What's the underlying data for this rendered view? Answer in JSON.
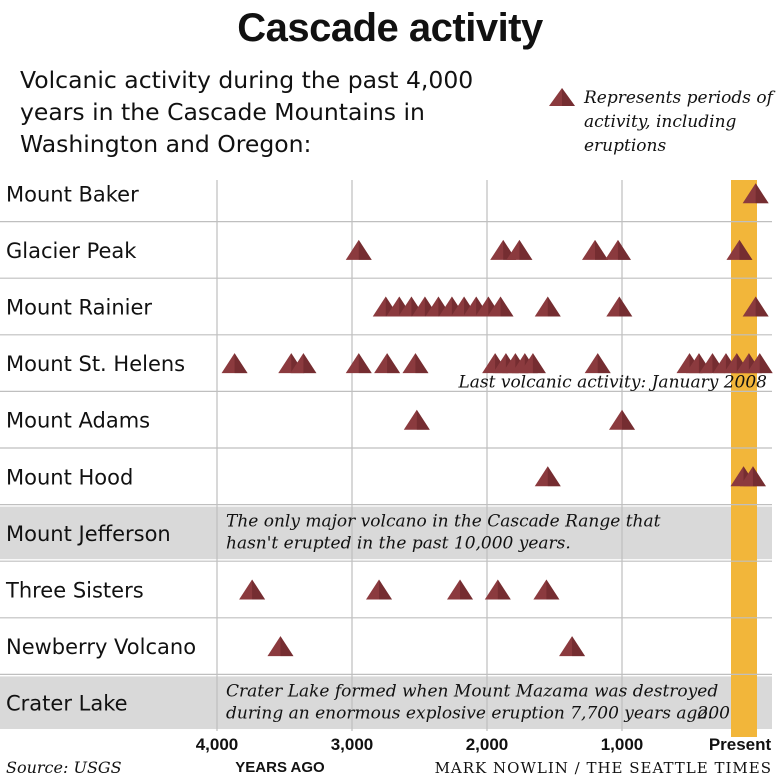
{
  "title": "Cascade activity",
  "subtitle": "Volcanic activity during the past 4,000 years in the Cascade Mountains in Washington and Oregon:",
  "legend": {
    "text": "Represents periods of activity, including eruptions"
  },
  "source": "Source: USGS",
  "credit": "MARK NOWLIN / THE SEATTLE TIMES",
  "colors": {
    "marker": "#8b3a3e",
    "marker_dark": "#5a1f22",
    "present_band": "#f2b63a",
    "shaded_row": "#d9d9d9",
    "grid": "#bfbfbf"
  },
  "chart_data": {
    "type": "scatter",
    "xlabel": "YEARS AGO",
    "x_ticks": [
      {
        "value": 4000,
        "label": "4,000"
      },
      {
        "value": 3000,
        "label": "3,000"
      },
      {
        "value": 2000,
        "label": "2,000"
      },
      {
        "value": 1000,
        "label": "1,000"
      },
      {
        "value": 0,
        "label": "Present"
      }
    ],
    "xlim": [
      4000,
      0
    ],
    "present_band_label": "200",
    "rows": [
      {
        "name": "Mount Baker",
        "events": [
          10
        ]
      },
      {
        "name": "Glacier Peak",
        "events": [
          2950,
          1880,
          1760,
          1200,
          1030,
          130
        ]
      },
      {
        "name": "Mount Rainier",
        "events": [
          2750,
          2650,
          2560,
          2460,
          2360,
          2260,
          2170,
          2080,
          1990,
          1900,
          1550,
          1020,
          10
        ]
      },
      {
        "name": "Mount St. Helens",
        "events": [
          3870,
          3450,
          3360,
          2950,
          2740,
          2530,
          1940,
          1860,
          1790,
          1720,
          1660,
          1180,
          500,
          430,
          330,
          230,
          150,
          60,
          -20
        ],
        "note": "Last volcanic activity: January 2008"
      },
      {
        "name": "Mount Adams",
        "events": [
          2520,
          1000
        ]
      },
      {
        "name": "Mount Hood",
        "events": [
          1550,
          100,
          30
        ]
      },
      {
        "name": "Mount Jefferson",
        "events": [],
        "shaded": true,
        "note": "The only major volcano in the Cascade Range that hasn't erupted in the past 10,000 years."
      },
      {
        "name": "Three Sisters",
        "events": [
          3740,
          2800,
          2200,
          1920,
          1560
        ]
      },
      {
        "name": "Newberry Volcano",
        "events": [
          3530,
          1370
        ]
      },
      {
        "name": "Crater Lake",
        "events": [],
        "shaded": true,
        "note": "Crater Lake formed when Mount Mazama was destroyed during an enormous explosive eruption 7,700 years ago."
      }
    ]
  }
}
